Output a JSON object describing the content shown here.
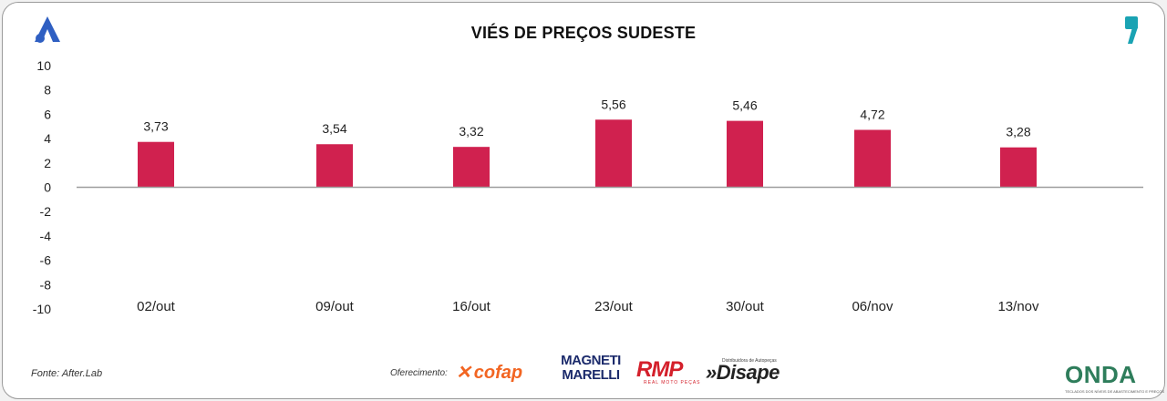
{
  "header": {
    "title": "VIÉS DE PREÇOS SUDESTE",
    "left_logo_icon": "blue-a-logo-icon",
    "right_logo_icon": "teal-comma-logo-icon"
  },
  "chart_data": {
    "type": "bar",
    "title": "VIÉS DE PREÇOS SUDESTE",
    "categories": [
      "02/out",
      "09/out",
      "16/out",
      "23/out",
      "30/out",
      "06/nov",
      "13/nov"
    ],
    "values": [
      3.73,
      3.54,
      3.32,
      5.56,
      5.46,
      4.72,
      3.28
    ],
    "data_labels": [
      "3,73",
      "3,54",
      "3,32",
      "5,56",
      "5,46",
      "4,72",
      "3,28"
    ],
    "yticks": [
      "10",
      "8",
      "6",
      "4",
      "2",
      "0",
      "-2",
      "-4",
      "-6",
      "-8",
      "-10"
    ],
    "ylim": [
      -10,
      10
    ],
    "grid": false,
    "bar_color": "#d0214f"
  },
  "footer": {
    "source": "Fonte: After.Lab",
    "offered_by": "Oferecimento:",
    "sponsors": {
      "cofap": "cofap",
      "magneti_line1": "MAGNETI",
      "magneti_line2": "MARELLI",
      "rmp": "RMP",
      "rmp_sub": "REAL MOTO PEÇAS",
      "disape": "»Disape",
      "disape_sub": "Distribuidora de Autopeças",
      "onda": "ONDA",
      "onda_sub": "TECLADOS DOS NÍVEIS DE ABASTECIMENTO E PREÇOS"
    },
    "colors": {
      "cofap": "#f26522",
      "magneti": "#1b2a6b",
      "rmp": "#d4202b",
      "onda": "#2e7d5b"
    }
  }
}
